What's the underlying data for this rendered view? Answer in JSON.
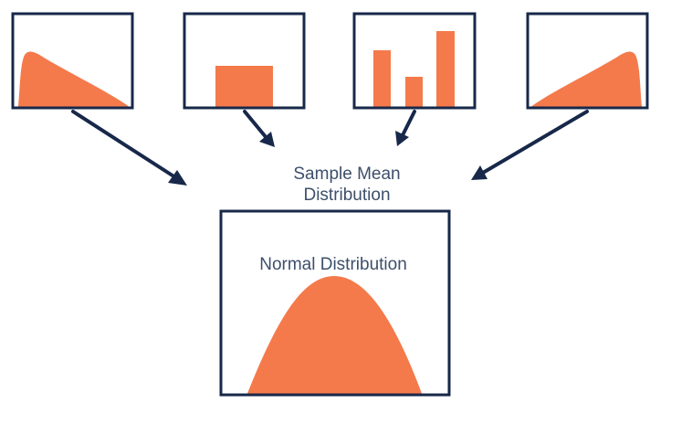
{
  "diagram": {
    "central_label_line1": "Sample Mean",
    "central_label_line2": "Distribution",
    "result_label": "Normal Distribution",
    "source_panels": [
      {
        "name": "right-skewed",
        "icon": "right-skewed-distribution-icon"
      },
      {
        "name": "uniform",
        "icon": "uniform-distribution-icon"
      },
      {
        "name": "discrete-bars",
        "icon": "discrete-bar-distribution-icon"
      },
      {
        "name": "left-skewed",
        "icon": "left-skewed-distribution-icon"
      }
    ],
    "result_panel": {
      "name": "normal",
      "icon": "bell-curve-icon"
    }
  },
  "colors": {
    "frame": "#17284a",
    "fill": "#f47a4b",
    "text": "#3d4f6b",
    "background": "#ffffff"
  }
}
